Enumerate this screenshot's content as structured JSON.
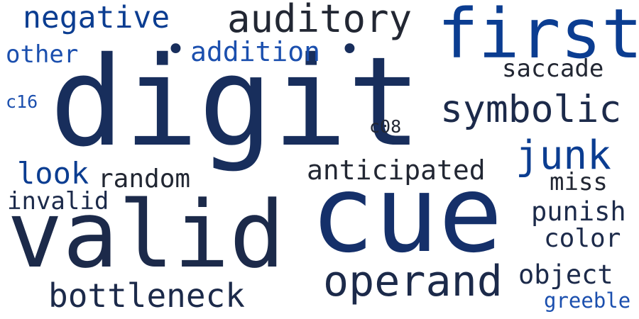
{
  "palette": {
    "navy": "#182e5c",
    "dark_navy": "#1c2a4a",
    "charcoal": "#222733",
    "blue": "#0b3d91",
    "light_blue": "#1b4fae"
  },
  "words": {
    "digit": "digit",
    "cue": "cue",
    "valid": "valid",
    "first": "first",
    "operand": "operand",
    "auditory": "auditory",
    "symbolic": "symbolic",
    "bottleneck": "bottleneck",
    "junk": "junk",
    "negative": "negative",
    "anticipated": "anticipated",
    "addition": "addition",
    "saccade": "saccade",
    "look": "look",
    "random": "random",
    "punish": "punish",
    "object": "object",
    "color": "color",
    "miss": "miss",
    "invalid": "invalid",
    "other": "other",
    "greeble": "greeble",
    "c08": "c08",
    "c16": "c16"
  },
  "decorations": {
    "dot_left": "•",
    "dot_right": "•"
  }
}
